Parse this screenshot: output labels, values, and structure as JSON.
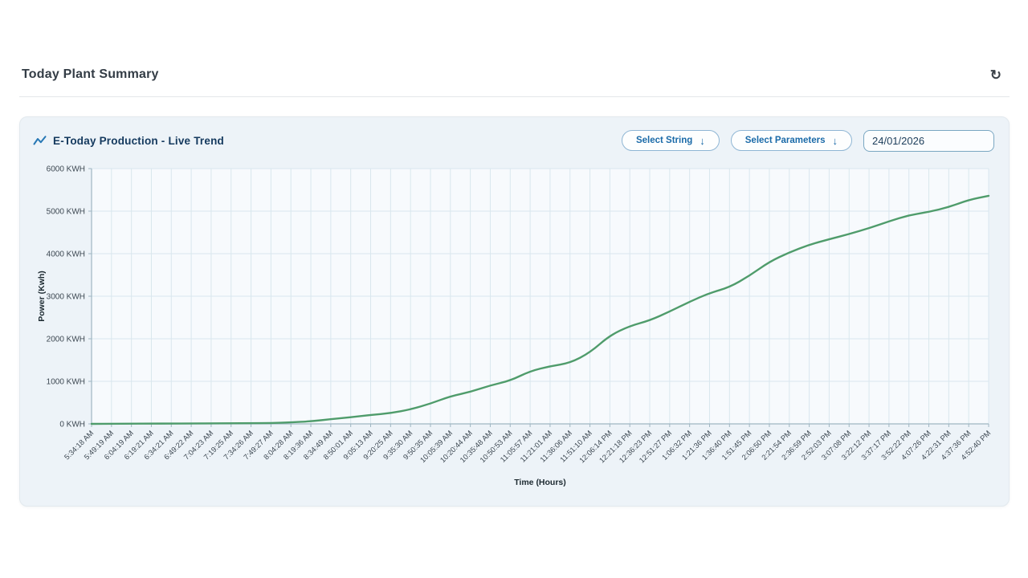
{
  "header": {
    "title": "Today Plant Summary",
    "refresh_icon_glyph": "↻"
  },
  "card": {
    "title": "E-Today Production - Live Trend",
    "select_string_label": "Select String",
    "select_parameters_label": "Select Parameters",
    "dropdown_arrow_glyph": "↓",
    "date_value": "24/01/2026"
  },
  "colors": {
    "line_green": "#4f9c6b",
    "grid": "#d9e7ee",
    "axis": "#9fb6c2",
    "plot_bg": "#f7fafd",
    "card_bg": "#edf3f8",
    "accent_blue": "#1a6aa8",
    "navy_title": "#14395e",
    "tick_text": "#3d4852",
    "axis_title_text": "#1c2930"
  },
  "chart_data": {
    "type": "line",
    "title": "E-Today Production - Live Trend",
    "xlabel": "Time (Hours)",
    "ylabel": "Power (Kwh)",
    "ylim": [
      0,
      6000
    ],
    "grid": true,
    "legend": "none",
    "y_tick_values": [
      0,
      1000,
      2000,
      3000,
      4000,
      5000,
      6000
    ],
    "y_ticks": [
      "0 KWH",
      "1000 KWH",
      "2000 KWH",
      "3000 KWH",
      "4000 KWH",
      "5000 KWH",
      "6000 KWH"
    ],
    "x": [
      "5:34:18 AM",
      "5:49:19 AM",
      "6:04:19 AM",
      "6:19:21 AM",
      "6:34:21 AM",
      "6:49:22 AM",
      "7:04:23 AM",
      "7:19:25 AM",
      "7:34:26 AM",
      "7:49:27 AM",
      "8:04:28 AM",
      "8:19:36 AM",
      "8:34:49 AM",
      "8:50:01 AM",
      "9:05:13 AM",
      "9:20:25 AM",
      "9:35:30 AM",
      "9:50:35 AM",
      "10:05:39 AM",
      "10:20:44 AM",
      "10:35:48 AM",
      "10:50:53 AM",
      "11:05:57 AM",
      "11:21:01 AM",
      "11:36:06 AM",
      "11:51:10 AM",
      "12:06:14 PM",
      "12:21:18 PM",
      "12:36:23 PM",
      "12:51:27 PM",
      "1:06:32 PM",
      "1:21:36 PM",
      "1:36:40 PM",
      "1:51:45 PM",
      "2:06:50 PM",
      "2:21:54 PM",
      "2:36:59 PM",
      "2:52:03 PM",
      "3:07:08 PM",
      "3:22:12 PM",
      "3:37:17 PM",
      "3:52:22 PM",
      "4:07:26 PM",
      "4:22:31 PM",
      "4:37:36 PM",
      "4:52:40 PM"
    ],
    "values": [
      0,
      2,
      4,
      6,
      8,
      10,
      12,
      14,
      17,
      20,
      35,
      60,
      110,
      155,
      210,
      250,
      340,
      475,
      650,
      750,
      905,
      1015,
      1240,
      1355,
      1430,
      1675,
      2080,
      2300,
      2430,
      2640,
      2870,
      3075,
      3210,
      3480,
      3810,
      4030,
      4210,
      4340,
      4460,
      4600,
      4760,
      4905,
      4980,
      5095,
      5265,
      5360
    ]
  }
}
